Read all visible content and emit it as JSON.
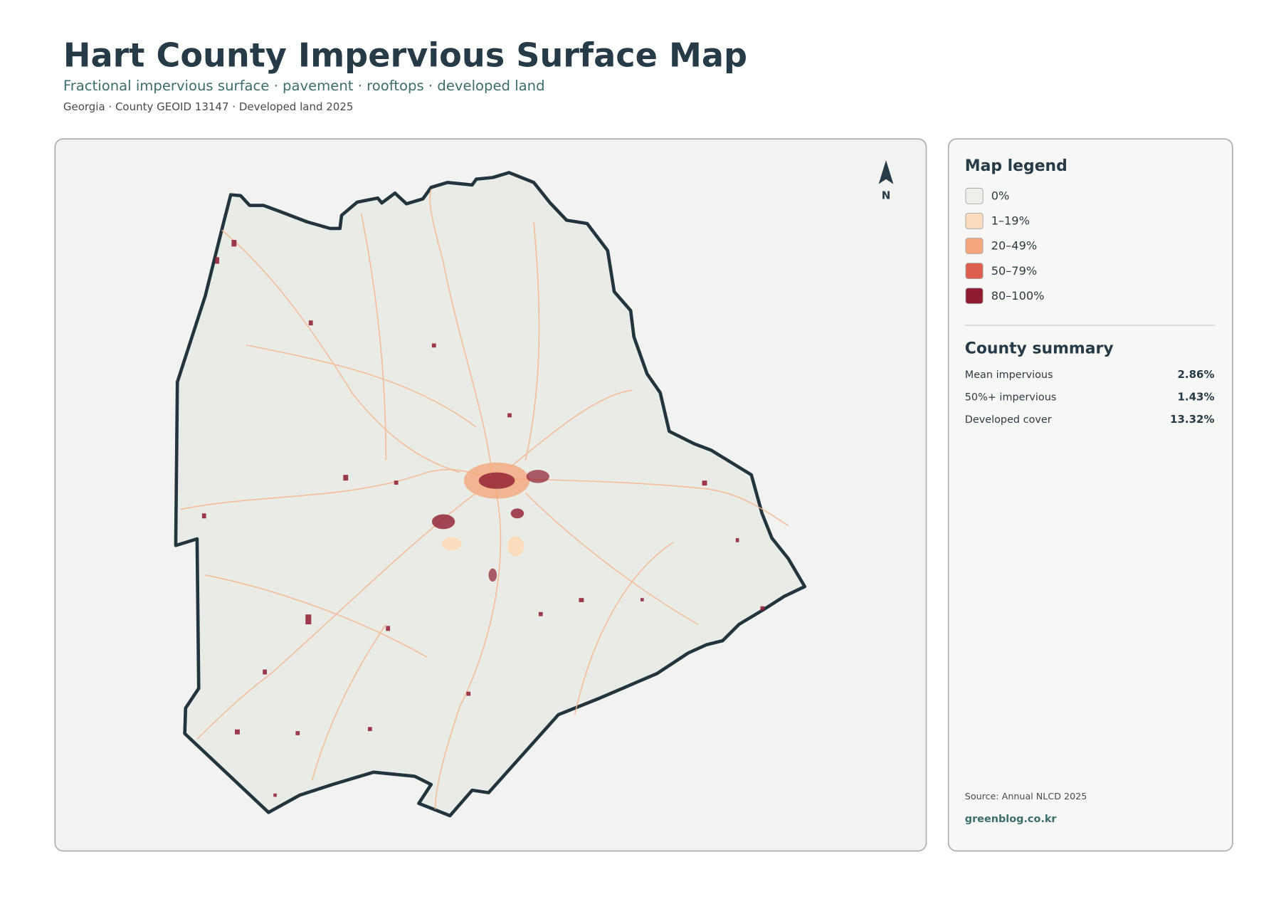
{
  "header": {
    "title": "Hart County Impervious Surface Map",
    "subtitle": "Fractional impervious surface · pavement · rooftops · developed land",
    "meta": "Georgia · County GEOID 13147 · Developed land 2025"
  },
  "map": {
    "north_label": "N"
  },
  "legend": {
    "title": "Map legend",
    "items": [
      {
        "label": "0%",
        "color": "#eeeeea"
      },
      {
        "label": "1–19%",
        "color": "#fcdcbc"
      },
      {
        "label": "20–49%",
        "color": "#f4a77c"
      },
      {
        "label": "50–79%",
        "color": "#df5f4f"
      },
      {
        "label": "80–100%",
        "color": "#8e1b2f"
      }
    ]
  },
  "summary": {
    "title": "County summary",
    "rows": [
      {
        "label": "Mean impervious",
        "value": "2.86%"
      },
      {
        "label": "50%+ impervious",
        "value": "1.43%"
      },
      {
        "label": "Developed cover",
        "value": "13.32%"
      }
    ]
  },
  "footer": {
    "source": "Source: Annual NLCD 2025",
    "credit": "greenblog.co.kr"
  }
}
